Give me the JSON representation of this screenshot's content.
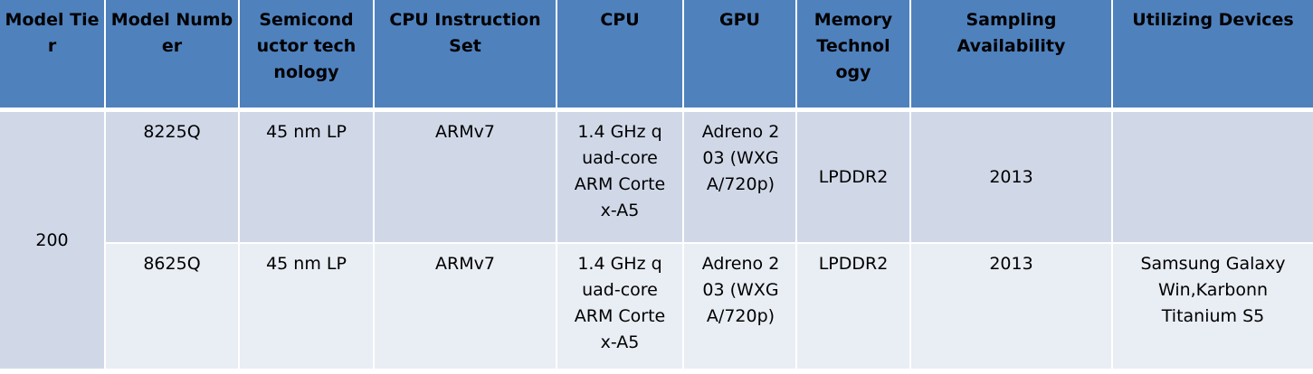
{
  "headers": [
    "Model Tier",
    "Model Number",
    "Semiconductor technology",
    "CPU Instruction Set",
    "CPU",
    "GPU",
    "Memory Technology",
    "Sampling Availability",
    "Utilizing Devices"
  ],
  "tier": "200",
  "rows": [
    {
      "model_number": "8225Q",
      "semiconductor": "45 nm LP",
      "instruction_set": "ARMv7",
      "cpu": "1.4 GHz quad-core ARM Cortex-A5",
      "gpu": "Adreno 203 (WXGA/720p)",
      "memory": "LPDDR2",
      "sampling": "2013",
      "devices": ""
    },
    {
      "model_number": "8625Q",
      "semiconductor": "45 nm LP",
      "instruction_set": "ARMv7",
      "cpu": "1.4 GHz quad-core ARM Cortex-A5",
      "gpu": "Adreno 203 (WXGA/720p)",
      "memory": "LPDDR2",
      "sampling": "2013",
      "devices": "Samsung Galaxy Win,Karbonn Titanium S5"
    }
  ]
}
